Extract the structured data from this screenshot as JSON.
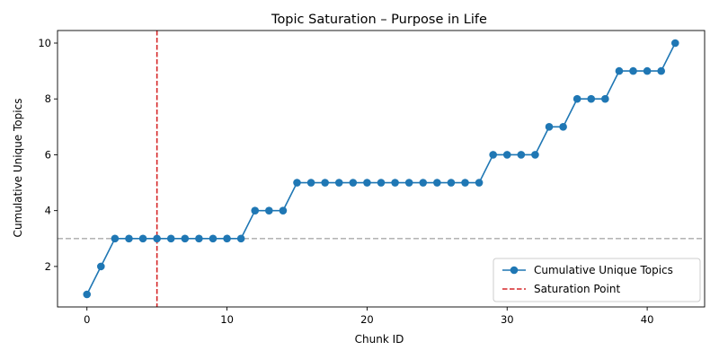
{
  "chart_data": {
    "type": "line",
    "title": "Topic Saturation – Purpose in Life",
    "xlabel": "Chunk ID",
    "ylabel": "Cumulative Unique Topics",
    "xlim": [
      -2.1,
      44.1
    ],
    "ylim": [
      0.55,
      10.45
    ],
    "xticks": [
      0,
      10,
      20,
      30,
      40
    ],
    "yticks": [
      2,
      4,
      6,
      8,
      10
    ],
    "grid": false,
    "legend_position": "lower-right",
    "series": [
      {
        "name": "Cumulative Unique Topics",
        "color": "#1f77b4",
        "marker": "circle",
        "x": [
          0,
          1,
          2,
          3,
          4,
          5,
          6,
          7,
          8,
          9,
          10,
          11,
          12,
          13,
          14,
          15,
          16,
          17,
          18,
          19,
          20,
          21,
          22,
          23,
          24,
          25,
          26,
          27,
          28,
          29,
          30,
          31,
          32,
          33,
          34,
          35,
          36,
          37,
          38,
          39,
          40,
          41,
          42
        ],
        "y": [
          1,
          2,
          3,
          3,
          3,
          3,
          3,
          3,
          3,
          3,
          3,
          3,
          4,
          4,
          4,
          5,
          5,
          5,
          5,
          5,
          5,
          5,
          5,
          5,
          5,
          5,
          5,
          5,
          5,
          6,
          6,
          6,
          6,
          7,
          7,
          8,
          8,
          8,
          9,
          9,
          9,
          9,
          10
        ]
      }
    ],
    "reference_lines": [
      {
        "name": "Saturation Point",
        "orientation": "vertical",
        "value": 5,
        "color": "#d62728",
        "style": "dashed"
      },
      {
        "name": "",
        "orientation": "horizontal",
        "value": 3,
        "color": "#aaaaaa",
        "style": "dashed"
      }
    ]
  }
}
